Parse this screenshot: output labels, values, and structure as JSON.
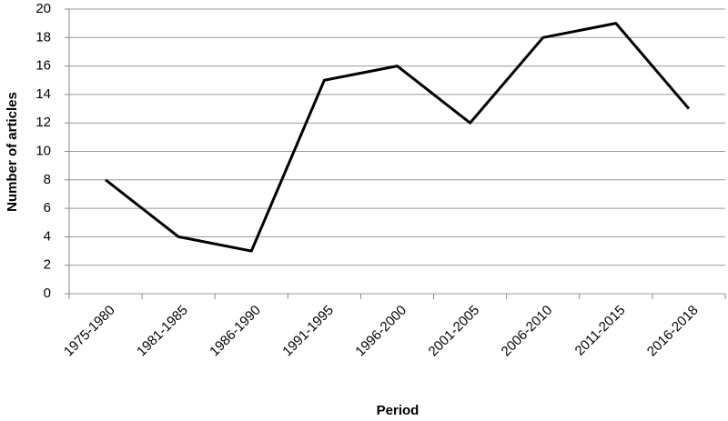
{
  "chart_data": {
    "type": "line",
    "x_label": "Period",
    "y_label": "Number of articles",
    "categories": [
      "1975-1980",
      "1981-1985",
      "1986-1990",
      "1991-1995",
      "1996-2000",
      "2001-2005",
      "2006-2010",
      "2011-2015",
      "2016-2018"
    ],
    "values": [
      8,
      4,
      3,
      15,
      16,
      12,
      18,
      19,
      13
    ],
    "color": "#000000",
    "ylim": [
      0,
      20
    ],
    "yticks": [
      0,
      2,
      4,
      6,
      8,
      10,
      12,
      14,
      16,
      18,
      20
    ],
    "grid": true
  }
}
